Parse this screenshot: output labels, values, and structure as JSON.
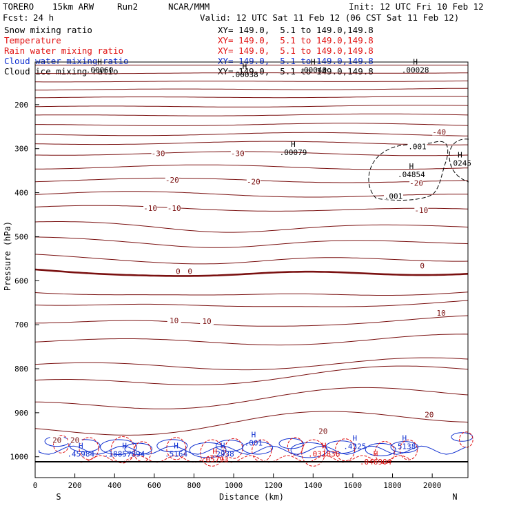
{
  "header": {
    "model": "TORERO",
    "res": "15km ARW",
    "run": "Run2",
    "org": "NCAR/MMM",
    "init": "Init: 12 UTC Fri 10 Feb 12",
    "fcst_label": "Fcst:",
    "fcst_value": "24 h",
    "valid": "Valid: 12 UTC Sat 11 Feb 12 (06 CST Sat 11 Feb 12)"
  },
  "fields": [
    {
      "name": "Snow mixing ratio",
      "xy": "XY= 149.0,  5.1 to 149.0,149.8",
      "color": "#000000"
    },
    {
      "name": "Temperature",
      "xy": "XY= 149.0,  5.1 to 149.0,149.8",
      "color": "#e01010"
    },
    {
      "name": "Rain water mixing ratio",
      "xy": "XY= 149.0,  5.1 to 149.0,149.8",
      "color": "#e01010"
    },
    {
      "name": "Cloud water mixing ratio",
      "xy": "XY= 149.0,  5.1 to 149.0,149.8",
      "color": "#1030d0"
    },
    {
      "name": "Cloud ice mixing ratio",
      "xy": "XY= 149.0,  5.1 to 149.0,149.8",
      "color": "#000000"
    }
  ],
  "chart_data": {
    "type": "contour-cross-section",
    "xlabel": "Distance (km)",
    "ylabel": "Pressure (hPa)",
    "xlim": [
      0,
      2180
    ],
    "ylim": [
      1050,
      100
    ],
    "x_ticks": [
      "0",
      "200",
      "400",
      "600",
      "800",
      "1000",
      "1200",
      "1400",
      "1600",
      "1800",
      "2000"
    ],
    "y_ticks": [
      "200",
      "300",
      "400",
      "500",
      "600",
      "700",
      "800",
      "900",
      "1000"
    ],
    "x_start_label": "S",
    "x_end_label": "N",
    "temperature_labels": [
      {
        "text": "-40",
        "x": 2035,
        "p": 262
      },
      {
        "text": "-30",
        "x": 620,
        "p": 311
      },
      {
        "text": "-30",
        "x": 1020,
        "p": 311
      },
      {
        "text": "-20",
        "x": 690,
        "p": 371
      },
      {
        "text": "-20",
        "x": 1100,
        "p": 375
      },
      {
        "text": "-20",
        "x": 1920,
        "p": 378
      },
      {
        "text": "-10",
        "x": 580,
        "p": 435
      },
      {
        "text": "-10",
        "x": 700,
        "p": 435
      },
      {
        "text": "-10",
        "x": 1945,
        "p": 440
      },
      {
        "text": "0",
        "x": 720,
        "p": 578
      },
      {
        "text": "0",
        "x": 780,
        "p": 578
      },
      {
        "text": "0",
        "x": 1950,
        "p": 566
      },
      {
        "text": "10",
        "x": 700,
        "p": 690
      },
      {
        "text": "10",
        "x": 865,
        "p": 692
      },
      {
        "text": "10",
        "x": 2045,
        "p": 673
      },
      {
        "text": "20",
        "x": 1450,
        "p": 942
      },
      {
        "text": "20",
        "x": 1985,
        "p": 904
      },
      {
        "text": "20",
        "x": 110,
        "p": 962
      },
      {
        "text": "20",
        "x": 200,
        "p": 962
      }
    ],
    "snow_contour_labels": [
      {
        "text": ".001",
        "x": 1925,
        "p": 295
      },
      {
        "text": ".001",
        "x": 1805,
        "p": 408
      }
    ],
    "maxima_labels": [
      {
        "text": ".00079",
        "x": 1300,
        "p": 302,
        "color": "#000000"
      },
      {
        "text": ".04854",
        "x": 1895,
        "p": 352,
        "color": "#000000"
      },
      {
        "text": ".0245",
        "x": 2140,
        "p": 326,
        "color": "#000000"
      },
      {
        "text": ".00060",
        "x": 325,
        "p": 115,
        "color": "#000000"
      },
      {
        "text": ".00040",
        "x": 1400,
        "p": 115,
        "color": "#000000"
      },
      {
        "text": ".00038",
        "x": 1055,
        "p": 125,
        "color": "#000000"
      },
      {
        "text": ".00028",
        "x": 1915,
        "p": 115,
        "color": "#000000"
      },
      {
        "text": ".45984",
        "x": 230,
        "p": 987,
        "color": "#1030d0"
      },
      {
        "text": ".18857894",
        "x": 450,
        "p": 987,
        "color": "#1030d0"
      },
      {
        "text": ".5164",
        "x": 710,
        "p": 987,
        "color": "#1030d0"
      },
      {
        "text": ".2938",
        "x": 945,
        "p": 987,
        "color": "#1030d0"
      },
      {
        "text": ".001",
        "x": 1100,
        "p": 962,
        "color": "#1030d0"
      },
      {
        "text": ".4325",
        "x": 1610,
        "p": 970,
        "color": "#1030d0"
      },
      {
        "text": ".5138",
        "x": 1860,
        "p": 970,
        "color": "#1030d0"
      },
      {
        "text": ".05793",
        "x": 905,
        "p": 1000,
        "color": "#e01010"
      },
      {
        "text": ".031836",
        "x": 1455,
        "p": 987,
        "color": "#e01010"
      },
      {
        "text": ".046904",
        "x": 1715,
        "p": 1005,
        "color": "#e01010"
      }
    ]
  }
}
